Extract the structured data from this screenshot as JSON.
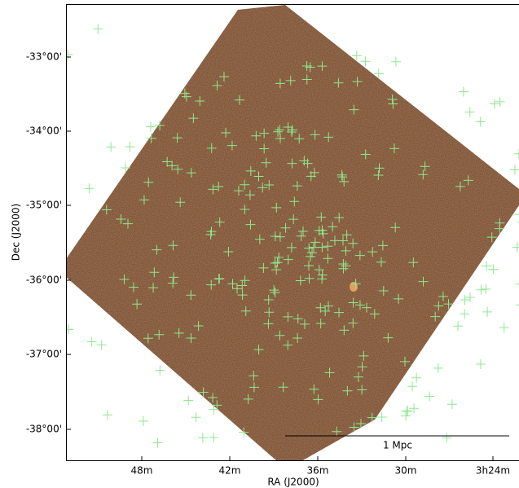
{
  "axes": {
    "x_label": "RA (J2000)",
    "y_label": "Dec (J2000)",
    "x_ticks": [
      "48m",
      "42m",
      "36m",
      "30m",
      "3h24m"
    ],
    "y_ticks": [
      "-33°00'",
      "-34°00'",
      "-35°00'",
      "-36°00'",
      "-37°00'",
      "-38°00'"
    ]
  },
  "scale_bar": {
    "label": "1 Mpc"
  }
}
